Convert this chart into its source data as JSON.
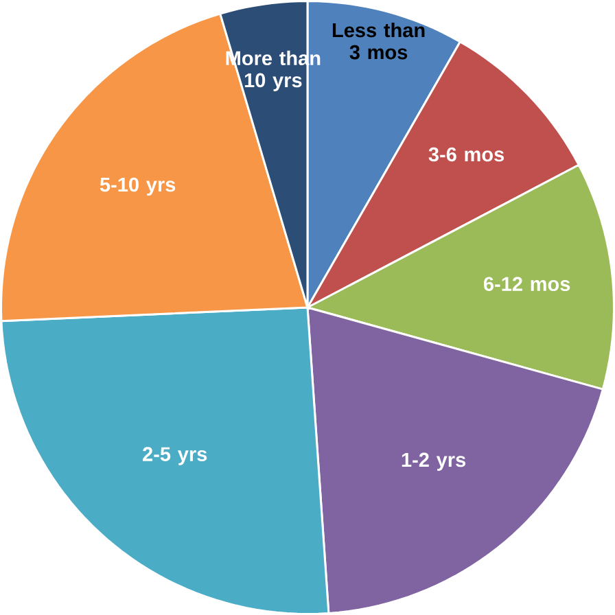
{
  "chart_data": {
    "type": "pie",
    "categories": [
      "Less than 3 mos",
      "3-6 mos",
      "6-12 mos",
      "1-2 yrs",
      "2-5 yrs",
      "5-10 yrs",
      "More than 10 yrs"
    ],
    "values": [
      8.3,
      9.0,
      12.0,
      19.6,
      25.4,
      21.1,
      4.6
    ],
    "colors": [
      "#4f81bd",
      "#c0504d",
      "#9bbb59",
      "#8064a2",
      "#4bacc6",
      "#f79646",
      "#2c4d75"
    ]
  }
}
